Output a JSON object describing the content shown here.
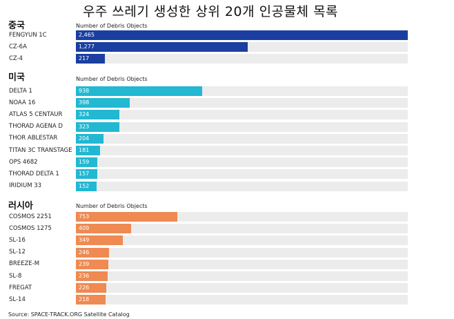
{
  "chart_data": {
    "type": "bar",
    "title": "우주 쓰레기 생성한 상위 20개 인공물체 목록",
    "source": "Source: SPACE-TRACK.ORG Satellite Catalog",
    "groups": [
      {
        "name": "중국",
        "axis_label": "Number of Debris Objects",
        "color": "#1b3fa0",
        "categories": [
          "FENGYUN 1C",
          "CZ-6A",
          "CZ-4"
        ],
        "values": [
          2465,
          1277,
          217
        ],
        "value_labels": [
          "2,465",
          "1,277",
          "217"
        ]
      },
      {
        "name": "미국",
        "axis_label": "Number of Debris Objects",
        "color": "#22b8d2",
        "categories": [
          "DELTA 1",
          "NOAA 16",
          "ATLAS 5 CENTAUR",
          "THORAD AGENA D",
          "THOR ABLESTAR",
          "TITAN 3C TRANSTAGE",
          "OPS 4682",
          "THORAD DELTA 1",
          "IRIDIUM 33"
        ],
        "values": [
          938,
          398,
          324,
          323,
          204,
          181,
          159,
          157,
          152
        ],
        "value_labels": [
          "938",
          "398",
          "324",
          "323",
          "204",
          "181",
          "159",
          "157",
          "152"
        ]
      },
      {
        "name": "러시아",
        "axis_label": "Number of Debris Objects",
        "color": "#ee8a52",
        "categories": [
          "COSMOS 2251",
          "COSMOS 1275",
          "SL-16",
          "SL-12",
          "BREEZE-M",
          "SL-8",
          "FREGAT",
          "SL-14"
        ],
        "values": [
          753,
          409,
          349,
          246,
          239,
          236,
          226,
          218
        ],
        "value_labels": [
          "753",
          "409",
          "349",
          "246",
          "239",
          "236",
          "226",
          "218"
        ]
      }
    ],
    "xlim": [
      0,
      2465
    ],
    "grid": false,
    "legend": "none"
  }
}
